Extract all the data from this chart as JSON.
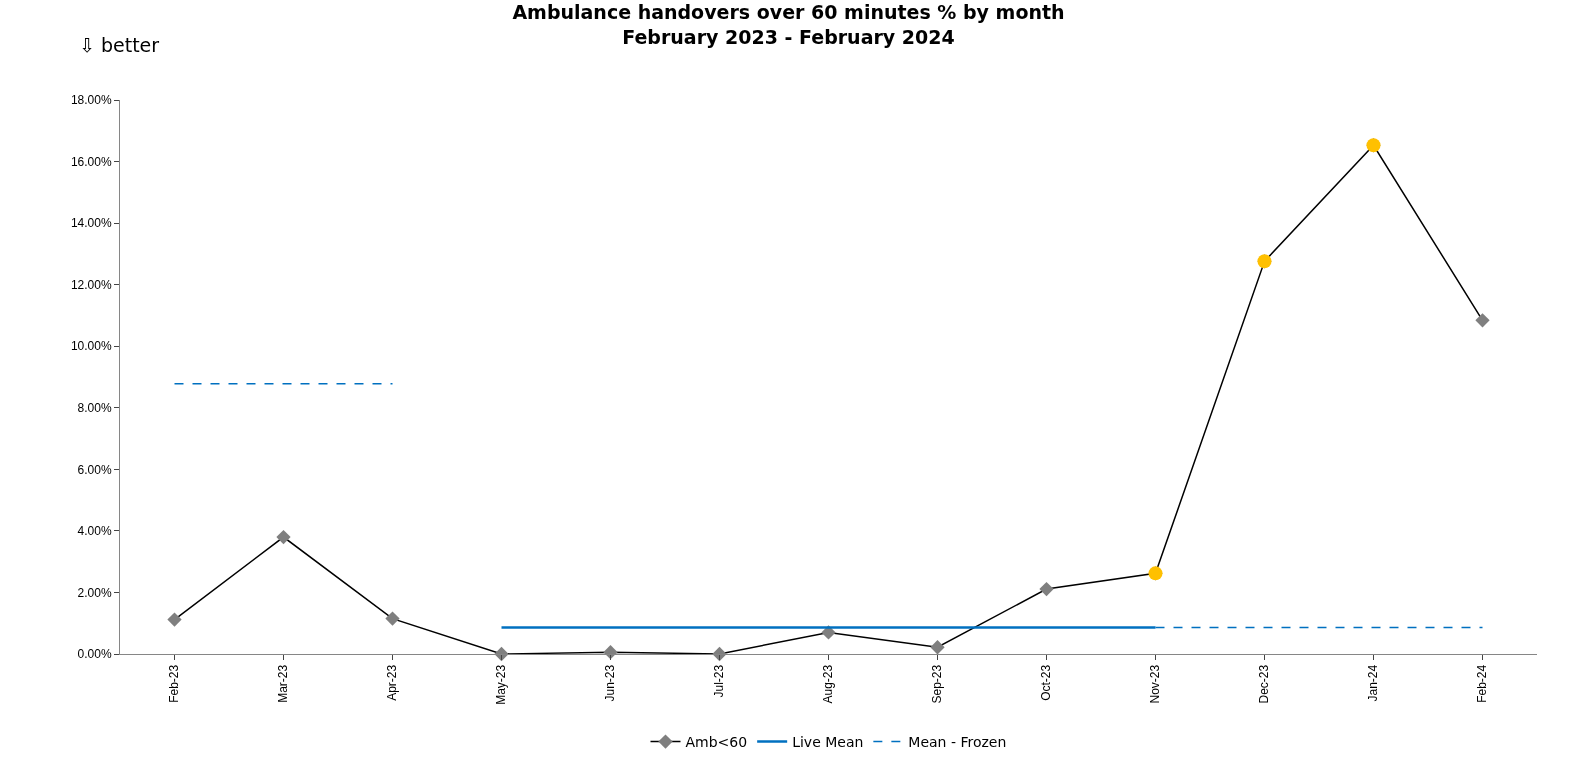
{
  "chart_data": {
    "type": "line",
    "title": "Ambulance handovers over 60 minutes % by month\nFebruary 2023 - February 2024",
    "categories": [
      "Feb-23",
      "Mar-23",
      "Apr-23",
      "May-23",
      "Jun-23",
      "Jul-23",
      "Aug-23",
      "Sep-23",
      "Oct-23",
      "Nov-23",
      "Dec-23",
      "Jan-24",
      "Feb-24"
    ],
    "series": [
      {
        "name": "Amb<60",
        "color": "#000000",
        "colors": [
          "#7f7f7f",
          "#7f7f7f",
          "#7f7f7f",
          "#7f7f7f",
          "#7f7f7f",
          "#7f7f7f",
          "#7f7f7f",
          "#7f7f7f",
          "#7f7f7f",
          "#7f7f7f",
          "#7f7f7f",
          "#7f7f7f",
          "#7f7f7f"
        ],
        "marker": "diamond",
        "line_style": "solid",
        "values": [
          1.12,
          3.8,
          1.15,
          0.0,
          0.06,
          0.0,
          0.7,
          0.22,
          2.11,
          2.62,
          12.76,
          16.53,
          10.84
        ]
      },
      {
        "type": "scatter",
        "color": "#ffc000",
        "marker": "circle",
        "values": [
          null,
          null,
          null,
          null,
          null,
          null,
          null,
          null,
          null,
          2.62,
          12.76,
          16.53,
          null
        ]
      },
      {
        "name": "Live Mean",
        "color": "#0070c0",
        "marker": "none",
        "line_style": "solid",
        "values": [
          null,
          null,
          null,
          0.86,
          0.86,
          0.86,
          0.86,
          0.86,
          0.86,
          0.86,
          null,
          null,
          null
        ]
      },
      {
        "name": "Mean - Frozen",
        "color": "#0070c0",
        "marker": "none",
        "line_style": "dashed",
        "values": [
          8.78,
          8.78,
          8.78,
          null,
          null,
          null,
          null,
          null,
          null,
          0.86,
          0.86,
          0.86,
          0.86
        ]
      }
    ],
    "ylim": [
      0,
      18
    ],
    "yticks": [
      {
        "value": 0,
        "label": "0.00%"
      },
      {
        "value": 2,
        "label": "2.00%"
      },
      {
        "value": 4,
        "label": "4.00%"
      },
      {
        "value": 6,
        "label": "6.00%"
      },
      {
        "value": 8,
        "label": "8.00%"
      },
      {
        "value": 10,
        "label": "10.00%"
      },
      {
        "value": 12,
        "label": "12.00%"
      },
      {
        "value": 14,
        "label": "14.00%"
      },
      {
        "value": 16,
        "label": "16.00%"
      },
      {
        "value": 18,
        "label": "18.00%"
      }
    ],
    "legend": "bottom",
    "annotations": [
      "⇩ better"
    ]
  }
}
